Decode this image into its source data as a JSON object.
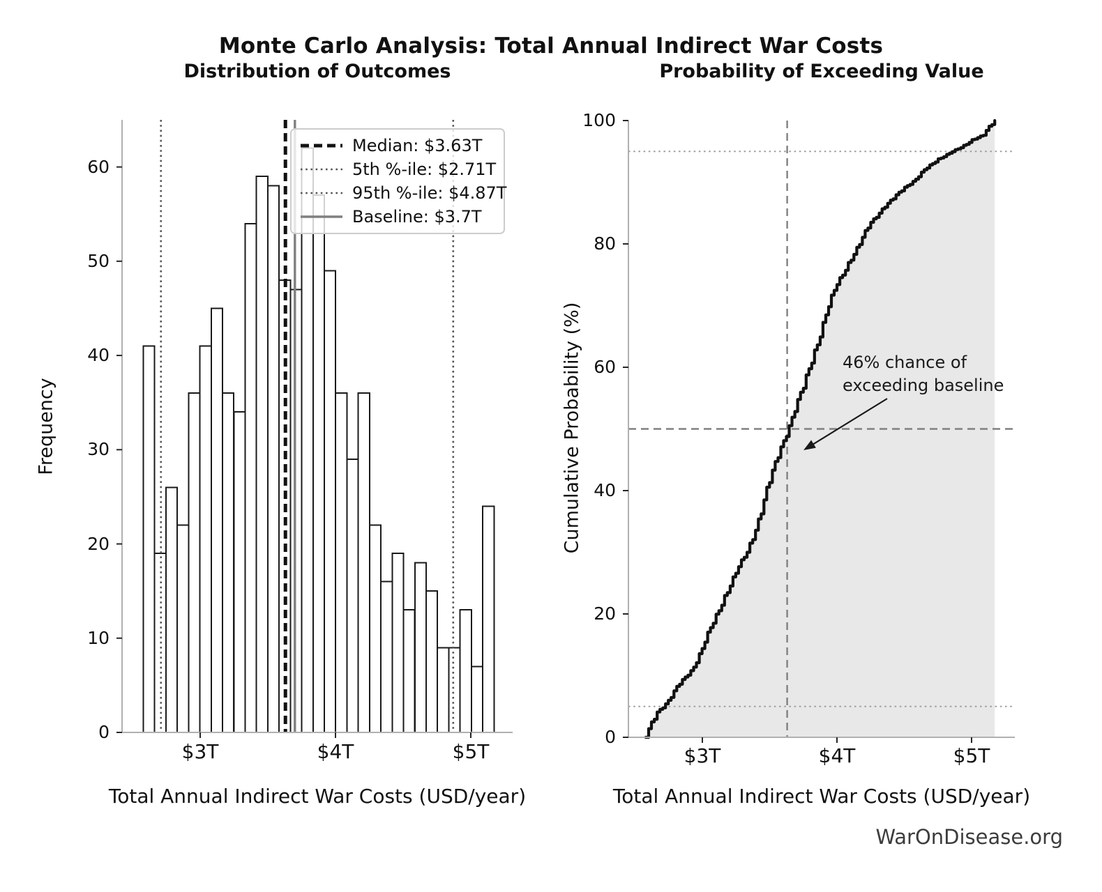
{
  "header": {
    "main_title": "Monte Carlo Analysis: Total Annual Indirect War Costs"
  },
  "footer": {
    "credit": "WarOnDisease.org"
  },
  "chart_data": [
    {
      "type": "bar",
      "subtype": "histogram",
      "title": "Distribution of Outcomes",
      "xlabel": "Total Annual Indirect War Costs (USD/year)",
      "ylabel": "Frequency",
      "bin_start_trillions": 2.58,
      "bin_width_trillions": 0.0836,
      "bin_counts": [
        41,
        19,
        26,
        22,
        36,
        41,
        45,
        36,
        34,
        54,
        59,
        58,
        48,
        47,
        62,
        57,
        49,
        36,
        29,
        36,
        22,
        16,
        19,
        13,
        18,
        15,
        9,
        9,
        13,
        7,
        24
      ],
      "bar_fill": "#ffffff",
      "bar_edge": "#1a1a1a",
      "xlim_trillions": [
        2.42,
        5.31
      ],
      "ylim": [
        0,
        65
      ],
      "grid": false,
      "xticks": [
        {
          "value": 3,
          "label": "$3T"
        },
        {
          "value": 4,
          "label": "$4T"
        },
        {
          "value": 5,
          "label": "$5T"
        }
      ],
      "yticks": [
        {
          "value": 0,
          "label": "0"
        },
        {
          "value": 10,
          "label": "10"
        },
        {
          "value": 20,
          "label": "20"
        },
        {
          "value": 30,
          "label": "30"
        },
        {
          "value": 40,
          "label": "40"
        },
        {
          "value": 50,
          "label": "50"
        },
        {
          "value": 60,
          "label": "60"
        }
      ],
      "lines": [
        {
          "id": "median",
          "value_trillions": 3.63,
          "style": "dashed",
          "color": "#111111",
          "label": "Median: $3.63T"
        },
        {
          "id": "p5",
          "value_trillions": 2.71,
          "style": "dotted",
          "color": "#555555",
          "label": "5th %-ile: $2.71T"
        },
        {
          "id": "p95",
          "value_trillions": 4.87,
          "style": "dotted",
          "color": "#555555",
          "label": "95th %-ile: $4.87T"
        },
        {
          "id": "baseline",
          "value_trillions": 3.7,
          "style": "solid",
          "color": "#808080",
          "label": "Baseline: $3.7T"
        }
      ],
      "legend_position": "upper right"
    },
    {
      "type": "line",
      "subtype": "ecdf",
      "title": "Probability of Exceeding Value",
      "xlabel": "Total Annual Indirect War Costs (USD/year)",
      "ylabel": "Cumulative Probability (%)",
      "xlim_trillions": [
        2.42,
        5.34
      ],
      "ylim": [
        0,
        100
      ],
      "grid": false,
      "curve_color": "#111111",
      "area_fill": "#e8e8e8",
      "x_edges_trillions": [
        2.58,
        2.664,
        2.747,
        2.831,
        2.914,
        2.998,
        3.081,
        3.165,
        3.248,
        3.332,
        3.416,
        3.499,
        3.583,
        3.666,
        3.75,
        3.833,
        3.917,
        4.0,
        4.084,
        4.168,
        4.251,
        4.335,
        4.418,
        4.502,
        4.585,
        4.669,
        4.752,
        4.836,
        4.92,
        5.003,
        5.087,
        5.172
      ],
      "cumulative_pct": [
        0,
        4.1,
        6.0,
        8.6,
        10.8,
        14.4,
        18.5,
        23.0,
        26.6,
        30.0,
        35.4,
        41.3,
        47.1,
        51.9,
        56.6,
        62.8,
        68.5,
        73.4,
        77.0,
        79.9,
        83.5,
        85.7,
        87.3,
        89.2,
        90.5,
        92.3,
        93.8,
        94.7,
        95.6,
        96.9,
        97.6,
        100.0
      ],
      "xticks": [
        {
          "value": 3,
          "label": "$3T"
        },
        {
          "value": 4,
          "label": "$4T"
        },
        {
          "value": 5,
          "label": "$5T"
        }
      ],
      "yticks": [
        {
          "value": 0,
          "label": "0"
        },
        {
          "value": 20,
          "label": "20"
        },
        {
          "value": 40,
          "label": "40"
        },
        {
          "value": 60,
          "label": "60"
        },
        {
          "value": 80,
          "label": "80"
        },
        {
          "value": 100,
          "label": "100"
        }
      ],
      "hlines": [
        {
          "value": 5,
          "style": "dotted",
          "color": "#a0a0a0"
        },
        {
          "value": 50,
          "style": "dashed",
          "color": "#808080"
        },
        {
          "value": 95,
          "style": "dotted",
          "color": "#a0a0a0"
        }
      ],
      "vline": {
        "value_trillions": 3.63,
        "style": "dashed",
        "color": "#808080"
      },
      "annotation": {
        "line1": "46% chance of",
        "line2": "exceeding baseline",
        "exceed_probability_pct": 46,
        "arrow_tip": {
          "x_trillions": 3.69,
          "y_pct": 46
        }
      }
    }
  ]
}
